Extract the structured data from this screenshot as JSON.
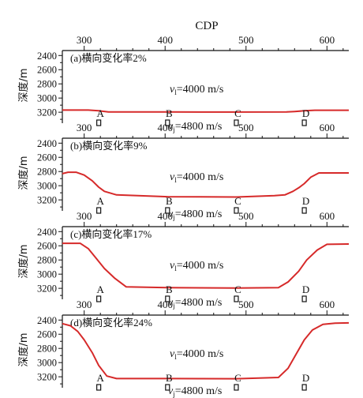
{
  "chart_data": [
    {
      "type": "line",
      "panel_label": "(a)横向变化率2%",
      "xlabel": "CDP",
      "ylabel": "深度/m",
      "x_ticks": [
        300,
        400,
        500,
        600
      ],
      "y_ticks": [
        2400,
        2600,
        2800,
        3000,
        3200
      ],
      "xlim": [
        273,
        627
      ],
      "ylim": [
        2330,
        3310
      ],
      "upper_velocity_label": "=4000 m/s",
      "lower_velocity_label": "=4800 m/s",
      "markers": [
        {
          "label": "A",
          "cdp": 318
        },
        {
          "label": "B",
          "cdp": 403
        },
        {
          "label": "C",
          "cdp": 488
        },
        {
          "label": "D",
          "cdp": 572
        }
      ],
      "interface": {
        "x": [
          273,
          305,
          318,
          330,
          403,
          488,
          550,
          560,
          572,
          585,
          627
        ],
        "y": [
          3170,
          3170,
          3180,
          3195,
          3196,
          3198,
          3196,
          3190,
          3180,
          3172,
          3172
        ]
      },
      "color": "#d62a2a"
    },
    {
      "type": "line",
      "panel_label": "(b)横向变化率9%",
      "ylabel": "深度/m",
      "x_ticks": [
        300,
        400,
        500,
        600
      ],
      "y_ticks": [
        2400,
        2600,
        2800,
        3000,
        3200
      ],
      "xlim": [
        273,
        627
      ],
      "ylim": [
        2330,
        3310
      ],
      "upper_velocity_label": "=4000 m/s",
      "lower_velocity_label": "=4800 m/s",
      "markers": [
        {
          "label": "A",
          "cdp": 318
        },
        {
          "label": "B",
          "cdp": 403
        },
        {
          "label": "C",
          "cdp": 488
        },
        {
          "label": "D",
          "cdp": 572
        }
      ],
      "interface": {
        "x": [
          273,
          280,
          290,
          300,
          310,
          318,
          325,
          340,
          403,
          488,
          535,
          548,
          558,
          565,
          572,
          580,
          590,
          627
        ],
        "y": [
          2830,
          2810,
          2810,
          2850,
          2930,
          3020,
          3080,
          3130,
          3155,
          3160,
          3140,
          3130,
          3080,
          3030,
          2970,
          2880,
          2820,
          2820
        ]
      },
      "color": "#d62a2a"
    },
    {
      "type": "line",
      "panel_label": "(c)横向变化率17%",
      "ylabel": "深度/m",
      "x_ticks": [
        300,
        400,
        500,
        600
      ],
      "y_ticks": [
        2400,
        2600,
        2800,
        3000,
        3200
      ],
      "xlim": [
        273,
        627
      ],
      "ylim": [
        2330,
        3310
      ],
      "upper_velocity_label": "=4000 m/s",
      "lower_velocity_label": "=4800 m/s",
      "markers": [
        {
          "label": "A",
          "cdp": 318
        },
        {
          "label": "B",
          "cdp": 403
        },
        {
          "label": "C",
          "cdp": 488
        },
        {
          "label": "D",
          "cdp": 572
        }
      ],
      "interface": {
        "x": [
          273,
          295,
          305,
          315,
          325,
          338,
          352,
          403,
          488,
          540,
          552,
          565,
          575,
          588,
          600,
          627
        ],
        "y": [
          2565,
          2565,
          2640,
          2780,
          2920,
          3060,
          3180,
          3190,
          3195,
          3190,
          3110,
          2960,
          2800,
          2660,
          2580,
          2575
        ]
      },
      "color": "#d62a2a"
    },
    {
      "type": "line",
      "panel_label": "(d)横向变化率24%",
      "ylabel": "深度/m",
      "x_ticks": [
        300,
        400,
        500,
        600
      ],
      "y_ticks": [
        2400,
        2600,
        2800,
        3000,
        3200
      ],
      "xlim": [
        273,
        627
      ],
      "ylim": [
        2330,
        3310
      ],
      "upper_velocity_label": "=4000 m/s",
      "lower_velocity_label": "=4800 m/s",
      "markers": [
        {
          "label": "A",
          "cdp": 318
        },
        {
          "label": "B",
          "cdp": 403
        },
        {
          "label": "C",
          "cdp": 488
        },
        {
          "label": "D",
          "cdp": 572
        }
      ],
      "interface": {
        "x": [
          273,
          283,
          292,
          300,
          310,
          318,
          328,
          340,
          403,
          488,
          540,
          552,
          562,
          572,
          582,
          595,
          610,
          627
        ],
        "y": [
          2450,
          2480,
          2560,
          2680,
          2860,
          3040,
          3190,
          3225,
          3225,
          3228,
          3210,
          3080,
          2880,
          2680,
          2540,
          2460,
          2445,
          2440
        ]
      },
      "color": "#d62a2a"
    }
  ]
}
